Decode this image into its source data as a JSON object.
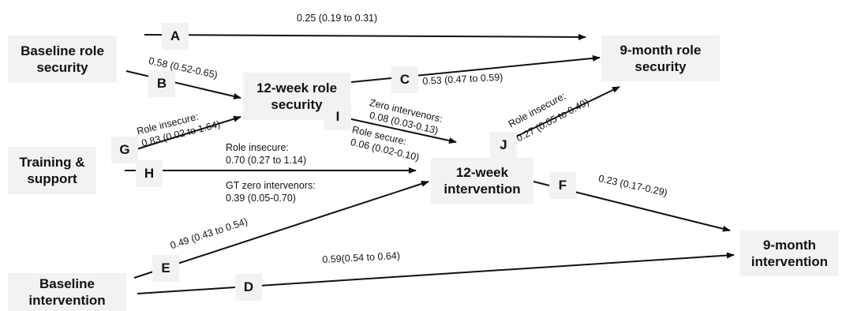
{
  "nodes": {
    "baseline_role_security": "Baseline role\nsecurity",
    "week12_role_security": "12-week role\nsecurity",
    "month9_role_security": "9-month role\nsecurity",
    "training_support": "Training &\nsupport",
    "week12_intervention": "12-week\nintervention",
    "baseline_intervention": "Baseline\nintervention",
    "month9_intervention": "9-month\nintervention"
  },
  "paths": {
    "A": {
      "letter": "A",
      "label": "0.25 (0.19 to 0.31)"
    },
    "B": {
      "letter": "B",
      "label": "0.58 (0.52-0.65)"
    },
    "C": {
      "letter": "C",
      "label": "0.53 (0.47 to 0.59)"
    },
    "D": {
      "letter": "D",
      "label": "0.59(0.54 to 0.64)"
    },
    "E": {
      "letter": "E",
      "label": "0.49 (0.43 to 0.54)"
    },
    "F": {
      "letter": "F",
      "label": "0.23 (0.17-0.29)"
    },
    "G": {
      "letter": "G",
      "label_line1": "Role insecure:",
      "label_line2": "0.83 (0.02 to 1.64)"
    },
    "H": {
      "letter": "H",
      "label_line1": "Role insecure:",
      "label_line2": "0.70 (0.27 to 1.14)",
      "label_line3": "GT zero intervenors:",
      "label_line4": "0.39 (0.05-0.70)"
    },
    "I": {
      "letter": "I",
      "label_line1": "Zero intervenors:",
      "label_line2": "0.08 (0.03-0.13)",
      "label_line3": "Role secure:",
      "label_line4": "0.06 (0.02-0.10)"
    },
    "J": {
      "letter": "J",
      "label_line1": "Role insecure:",
      "label_line2": "0.27 (0.05 to 0.49)"
    }
  },
  "colors": {
    "box_fill": "#f2f2f2",
    "line": "#111111"
  }
}
